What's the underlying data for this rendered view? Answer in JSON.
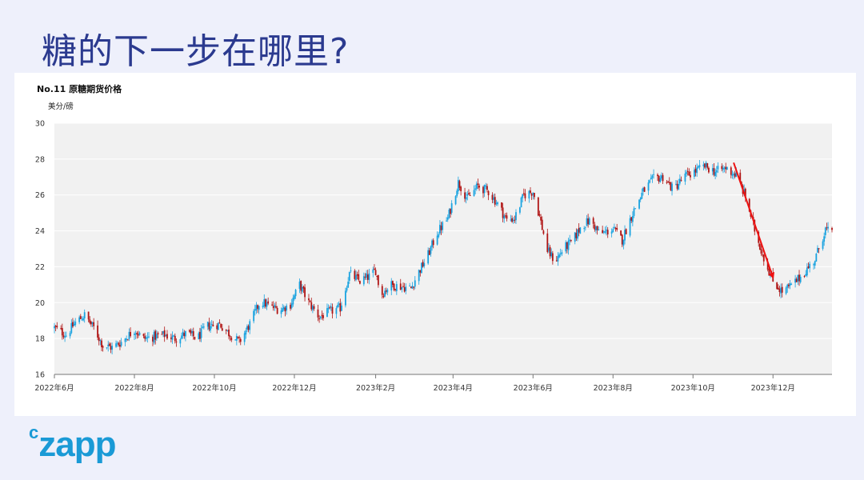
{
  "slide": {
    "title": "糖的下一步在哪里?",
    "logo": "czapp"
  },
  "colors": {
    "up": "#1aa3e0",
    "down": "#b01414",
    "arrow": "#ee1111",
    "plot_bg": "#f1f1f1",
    "title": "#2b3a8f"
  },
  "chart_data": {
    "type": "candlestick",
    "title": "No.11 原糖期货价格",
    "unit_label": "美分/磅",
    "ylim": [
      16,
      30
    ],
    "yticks": [
      16,
      18,
      20,
      22,
      24,
      26,
      28,
      30
    ],
    "xlim": [
      "2022-06-01",
      "2024-01-15"
    ],
    "xticks": [
      {
        "date": "2022-06-01",
        "label": "2022年6月"
      },
      {
        "date": "2022-08-01",
        "label": "2022年8月"
      },
      {
        "date": "2022-10-01",
        "label": "2022年10月"
      },
      {
        "date": "2022-12-01",
        "label": "2022年12月"
      },
      {
        "date": "2023-02-01",
        "label": "2023年2月"
      },
      {
        "date": "2023-04-01",
        "label": "2023年4月"
      },
      {
        "date": "2023-06-01",
        "label": "2023年6月"
      },
      {
        "date": "2023-08-01",
        "label": "2023年8月"
      },
      {
        "date": "2023-10-01",
        "label": "2023年10月"
      },
      {
        "date": "2023-12-01",
        "label": "2023年12月"
      }
    ],
    "grid": true,
    "close_series": [
      [
        "2022-06-01",
        18.6
      ],
      [
        "2022-06-10",
        18.2
      ],
      [
        "2022-06-17",
        18.9
      ],
      [
        "2022-06-24",
        19.3
      ],
      [
        "2022-07-01",
        18.6
      ],
      [
        "2022-07-08",
        17.6
      ],
      [
        "2022-07-15",
        17.5
      ],
      [
        "2022-07-22",
        17.8
      ],
      [
        "2022-08-01",
        18.5
      ],
      [
        "2022-08-08",
        18.0
      ],
      [
        "2022-08-16",
        18.1
      ],
      [
        "2022-08-24",
        18.2
      ],
      [
        "2022-09-01",
        18.0
      ],
      [
        "2022-09-10",
        18.3
      ],
      [
        "2022-09-18",
        18.0
      ],
      [
        "2022-09-25",
        18.7
      ],
      [
        "2022-10-05",
        18.8
      ],
      [
        "2022-10-12",
        18.3
      ],
      [
        "2022-10-20",
        17.8
      ],
      [
        "2022-10-28",
        18.8
      ],
      [
        "2022-11-05",
        20.1
      ],
      [
        "2022-11-12",
        19.8
      ],
      [
        "2022-11-20",
        19.6
      ],
      [
        "2022-11-28",
        19.9
      ],
      [
        "2022-12-05",
        21.0
      ],
      [
        "2022-12-12",
        20.0
      ],
      [
        "2022-12-20",
        19.2
      ],
      [
        "2022-12-28",
        19.5
      ],
      [
        "2023-01-05",
        19.7
      ],
      [
        "2023-01-12",
        21.6
      ],
      [
        "2023-01-20",
        21.2
      ],
      [
        "2023-01-28",
        21.5
      ],
      [
        "2023-02-01",
        21.8
      ],
      [
        "2023-02-05",
        20.4
      ],
      [
        "2023-02-12",
        21.0
      ],
      [
        "2023-02-20",
        20.9
      ],
      [
        "2023-02-28",
        20.8
      ],
      [
        "2023-03-05",
        21.6
      ],
      [
        "2023-03-12",
        22.5
      ],
      [
        "2023-03-20",
        23.9
      ],
      [
        "2023-03-28",
        24.7
      ],
      [
        "2023-04-05",
        26.7
      ],
      [
        "2023-04-12",
        25.8
      ],
      [
        "2023-04-20",
        26.5
      ],
      [
        "2023-04-28",
        26.2
      ],
      [
        "2023-05-05",
        25.5
      ],
      [
        "2023-05-12",
        24.6
      ],
      [
        "2023-05-18",
        24.7
      ],
      [
        "2023-05-25",
        26.0
      ],
      [
        "2023-06-01",
        26.2
      ],
      [
        "2023-06-06",
        24.8
      ],
      [
        "2023-06-12",
        22.9
      ],
      [
        "2023-06-18",
        22.3
      ],
      [
        "2023-06-24",
        23.0
      ],
      [
        "2023-07-01",
        23.4
      ],
      [
        "2023-07-08",
        24.3
      ],
      [
        "2023-07-15",
        24.6
      ],
      [
        "2023-07-22",
        23.8
      ],
      [
        "2023-08-01",
        24.1
      ],
      [
        "2023-08-08",
        23.5
      ],
      [
        "2023-08-16",
        25.0
      ],
      [
        "2023-08-24",
        26.2
      ],
      [
        "2023-09-01",
        26.9
      ],
      [
        "2023-09-08",
        27.0
      ],
      [
        "2023-09-16",
        26.3
      ],
      [
        "2023-09-24",
        27.0
      ],
      [
        "2023-10-02",
        27.3
      ],
      [
        "2023-10-10",
        27.6
      ],
      [
        "2023-10-18",
        27.3
      ],
      [
        "2023-10-26",
        27.5
      ],
      [
        "2023-11-03",
        27.1
      ],
      [
        "2023-11-10",
        25.9
      ],
      [
        "2023-11-18",
        23.8
      ],
      [
        "2023-11-24",
        22.5
      ],
      [
        "2023-12-01",
        21.2
      ],
      [
        "2023-12-08",
        20.6
      ],
      [
        "2023-12-16",
        21.0
      ],
      [
        "2023-12-24",
        21.6
      ],
      [
        "2024-01-02",
        22.4
      ],
      [
        "2024-01-10",
        24.1
      ],
      [
        "2024-01-15",
        23.8
      ]
    ],
    "annotation": {
      "type": "arrow",
      "from": [
        "2023-11-01",
        27.8
      ],
      "to": [
        "2023-12-01",
        21.4
      ]
    }
  }
}
